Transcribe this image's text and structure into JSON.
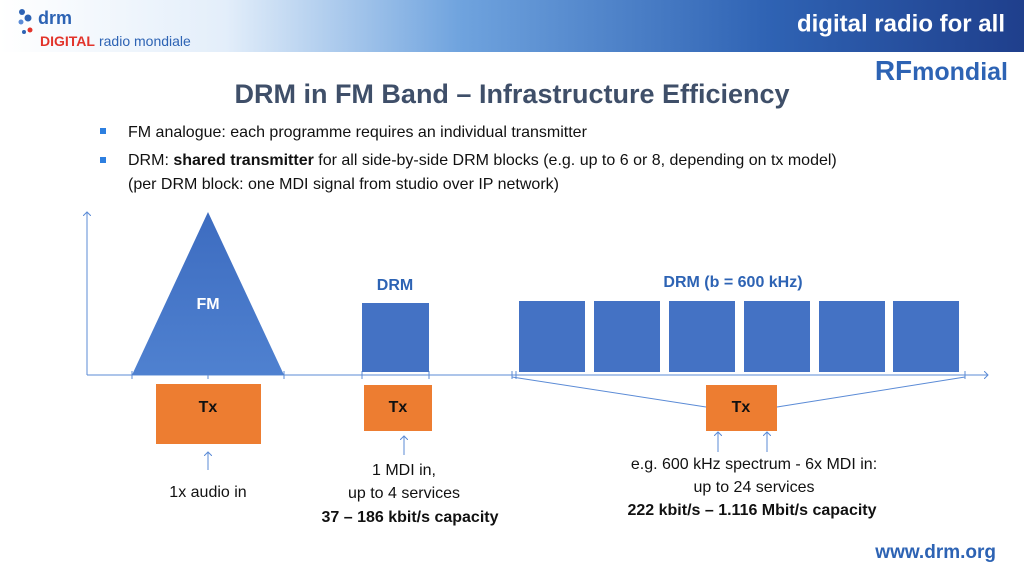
{
  "header": {
    "logo_name": "drm",
    "logo_sub_1": "DIGITAL",
    "logo_sub_2": "radio mondiale",
    "tagline": "digital radio for all",
    "partner_1": "RF",
    "partner_2": "mondial"
  },
  "title": "DRM in FM Band – Infrastructure Efficiency",
  "bullets": [
    {
      "parts": [
        "FM analogue: each programme requires an individual transmitter"
      ]
    },
    {
      "parts": [
        "DRM: ",
        "shared transmitter",
        " for all side-by-side DRM blocks (e.g. up to 6 or 8, depending on tx model)"
      ],
      "continuation": "(per DRM block: one MDI signal from studio over IP network)"
    }
  ],
  "diagram": {
    "fm_label": "FM",
    "drm_label": "DRM",
    "drm_wide_label": "DRM (b = 600 kHz)",
    "tx": [
      "Tx",
      "Tx",
      "Tx"
    ],
    "captions": [
      [
        "1x audio in"
      ],
      [
        "1 MDI in,",
        "up to 4 services",
        "37 – 186 kbit/s capacity"
      ],
      [
        "e.g. 600 kHz spectrum - 6x MDI in:",
        "up to 24 services",
        "222 kbit/s – 1.116 Mbit/s capacity"
      ]
    ]
  },
  "footer": "www.drm.org"
}
